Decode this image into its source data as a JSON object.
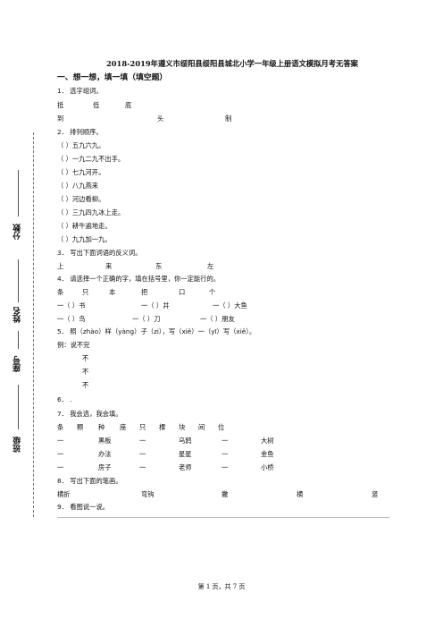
{
  "margin": {
    "score": "分数",
    "name": "姓名",
    "seat": "座号",
    "class": "班级"
  },
  "title": "2018-2019年遵义市绥阳县绥阳县城北小学一年级上册语文模拟月考无答案",
  "section1": "一、想一想，填一填（填空题）",
  "q1": {
    "stem": "1．  选字组词。",
    "row1": [
      "抵",
      "低",
      "底"
    ],
    "row2": [
      "到",
      "头",
      "制"
    ]
  },
  "q2": {
    "stem": "2．  排列顺序。",
    "items": [
      "（        ）五九六九。",
      "（        ）一九二九不出手。",
      "（        ）七九河开。",
      "（        ）八九燕来",
      "（        ）河边看柳。",
      "（        ）三九四九冰上走。",
      "（        ）耕牛遍地走。",
      "（        ）九九加一九。"
    ]
  },
  "q3": {
    "stem": "3．  写出下面词语的反义词。",
    "row": [
      "上",
      "来",
      "东",
      "左"
    ]
  },
  "q4": {
    "stem": "4．  请选择一个正确的字，填在括号里，你一定能行的。",
    "chars": [
      "条",
      "只",
      "本",
      "把",
      "口",
      "个"
    ],
    "row": [
      "一（        ）书",
      "一（        ）井",
      "一（        ）大鱼"
    ],
    "row2": [
      "一（        ）鸟",
      "一（        ）刀",
      "一（        ）朋友"
    ]
  },
  "q5": {
    "stem": "5．  照（zhào）样（yàng）子（zi），写（xiě）一（yī）写（xiě）。",
    "example": "例：说不完",
    "blanks": [
      "不",
      "不",
      "不"
    ]
  },
  "q6": {
    "stem": "6．  ."
  },
  "q7": {
    "stem": "7．  我会选，我会填。",
    "chars": [
      "条",
      "颗",
      "种",
      "座",
      "只",
      "棵",
      "块",
      "间",
      "位"
    ],
    "rows": [
      [
        "一",
        "黑板",
        "一",
        "乌鸦",
        "一",
        "大树"
      ],
      [
        "一",
        "办法",
        "一",
        "星星",
        "一",
        "金鱼"
      ],
      [
        "一",
        "房子",
        "一",
        "老师",
        "一",
        "小桥"
      ]
    ]
  },
  "q8": {
    "stem": "8．  写出下面的笔画。",
    "row": [
      "横折",
      "弯钩",
      "撇",
      "横",
      "竖"
    ]
  },
  "q9": {
    "stem": "9．  看图说一说。"
  },
  "footer": "第 1 页，共 7 页"
}
